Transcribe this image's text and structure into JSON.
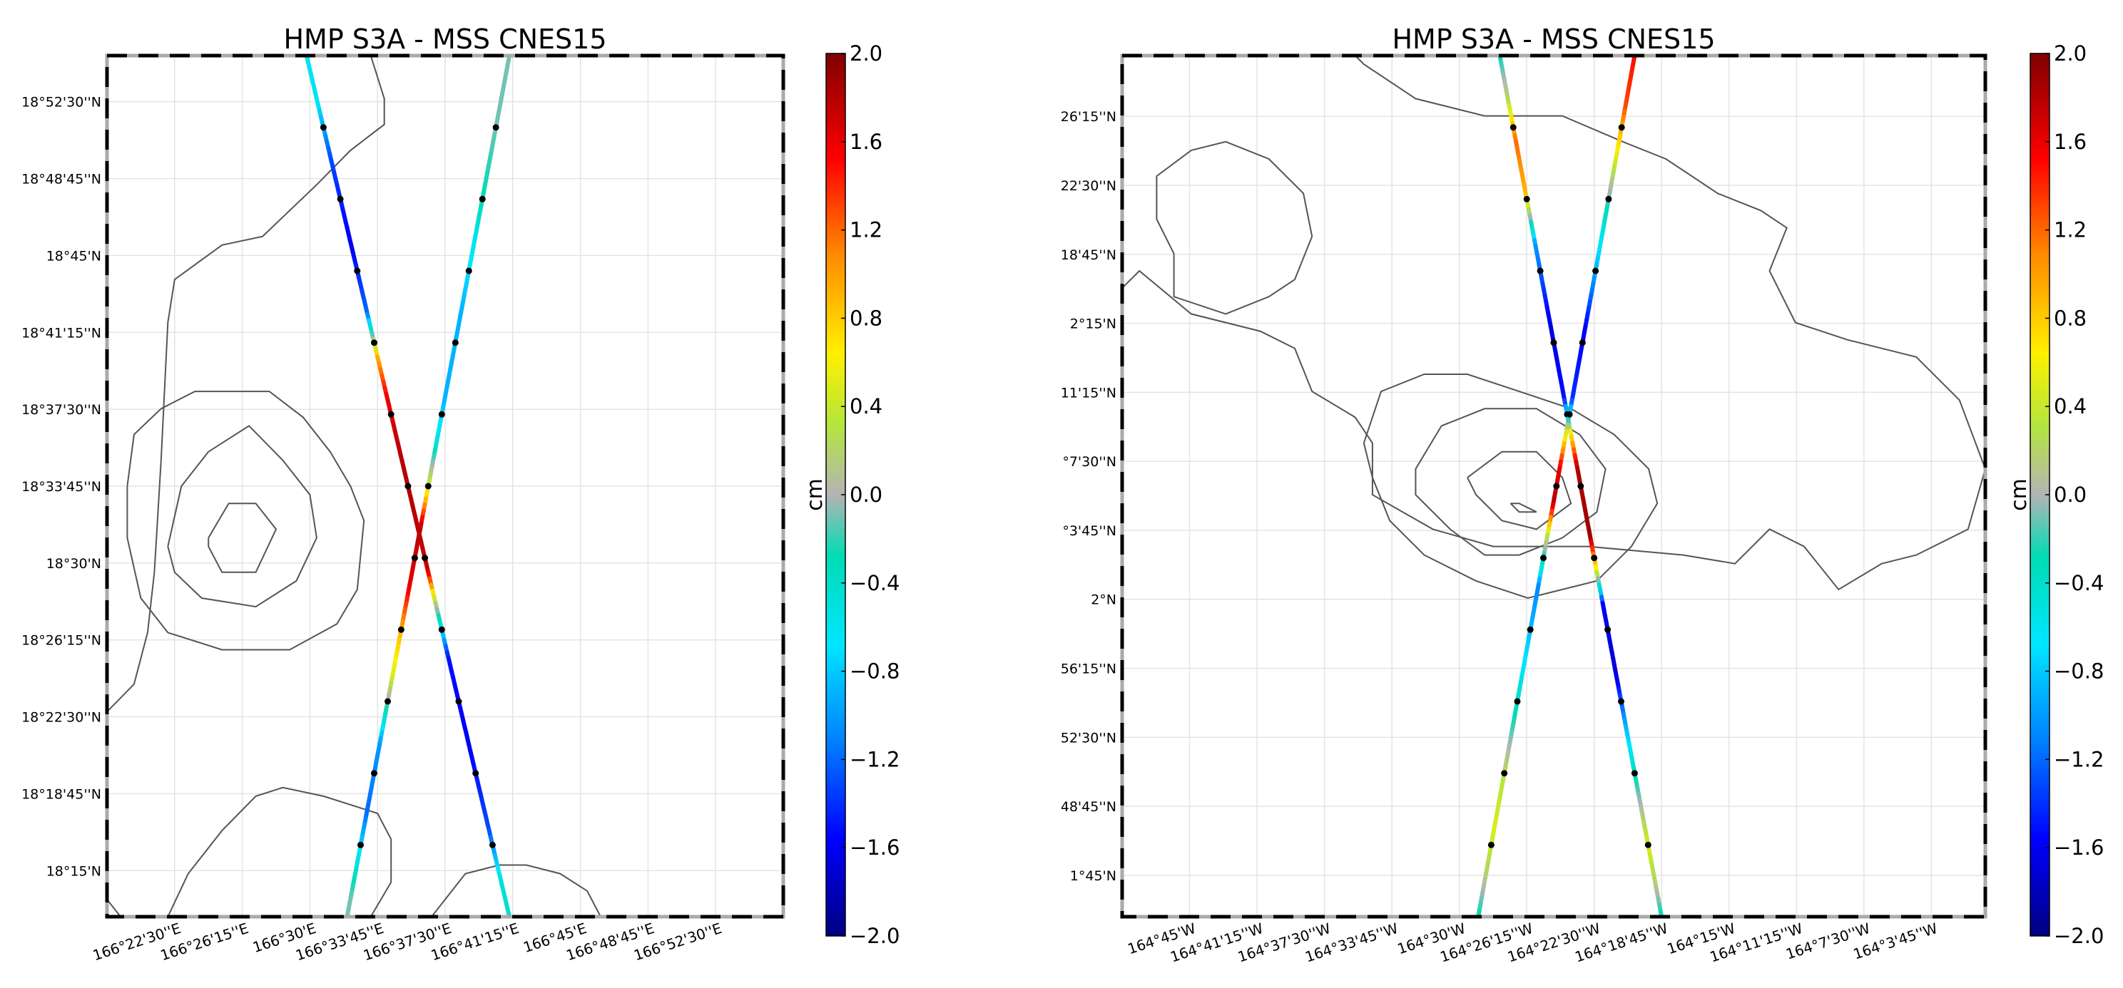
{
  "chart_data": [
    {
      "type": "map-track",
      "title": "HMP S3A - MSS CNES15",
      "projection": "lat-lon",
      "x_axis": {
        "range_deg": [
          166.3125,
          166.9375
        ],
        "ticks_deg": [
          166.375,
          166.4375,
          166.5,
          166.5625,
          166.625,
          166.6875,
          166.75,
          166.8125,
          166.875
        ],
        "tick_labels": [
          "166°22'30''E",
          "166°26'15''E",
          "166°30'E",
          "166°33'45''E",
          "166°37'30''E",
          "166°41'15''E",
          "166°45'E",
          "166°48'45''E",
          "166°52'30''E"
        ]
      },
      "y_axis": {
        "range_deg": [
          18.2125,
          18.9125
        ],
        "ticks_deg": [
          18.25,
          18.3125,
          18.375,
          18.4375,
          18.5,
          18.5625,
          18.625,
          18.6875,
          18.75,
          18.8125,
          18.875
        ],
        "tick_labels": [
          "18°15'N",
          "18°18'45''N",
          "18°22'30''N",
          "18°26'15''N",
          "18°30'N",
          "18°33'45''N",
          "18°37'30''N",
          "18°41'15''N",
          "18°45'N",
          "18°48'45''N",
          "18°52'30''N"
        ]
      },
      "grid": true,
      "tracks": [
        {
          "start": [
            166.4969,
            18.9125
          ],
          "end": [
            166.6844,
            18.2125
          ],
          "profile": [
            [
              0,
              -0.6
            ],
            [
              0.05,
              -0.6
            ],
            [
              0.12,
              -1.3
            ],
            [
              0.22,
              -1.6
            ],
            [
              0.3,
              -1.2
            ],
            [
              0.35,
              0.9
            ],
            [
              0.4,
              1.6
            ],
            [
              0.47,
              1.8
            ],
            [
              0.53,
              1.8
            ],
            [
              0.6,
              1.7
            ],
            [
              0.64,
              0.1
            ],
            [
              0.7,
              -1.5
            ],
            [
              0.8,
              -1.6
            ],
            [
              0.9,
              -1.3
            ],
            [
              0.96,
              -0.5
            ],
            [
              1,
              -0.4
            ]
          ]
        },
        {
          "start": [
            166.6844,
            18.9125
          ],
          "end": [
            166.5344,
            18.2125
          ],
          "profile": [
            [
              0,
              -0.1
            ],
            [
              0.08,
              -0.1
            ],
            [
              0.17,
              -0.3
            ],
            [
              0.22,
              -0.6
            ],
            [
              0.3,
              -0.9
            ],
            [
              0.4,
              -0.9
            ],
            [
              0.45,
              -0.5
            ],
            [
              0.5,
              0.4
            ],
            [
              0.55,
              1.8
            ],
            [
              0.62,
              1.6
            ],
            [
              0.67,
              0.9
            ],
            [
              0.72,
              0.5
            ],
            [
              0.8,
              -1.0
            ],
            [
              0.88,
              -1.2
            ],
            [
              0.94,
              -0.5
            ],
            [
              0.98,
              -0.1
            ],
            [
              1,
              -0.1
            ]
          ]
        }
      ],
      "colorbar": {
        "label": "cm",
        "vmin": -2.0,
        "vmax": 2.0,
        "tick_values": [
          2.0,
          1.6,
          1.2,
          0.8,
          0.4,
          0.0,
          -0.4,
          -0.8,
          -1.2,
          -1.6,
          -2.0
        ],
        "tick_labels": [
          "2.0",
          "1.6",
          "1.2",
          "0.8",
          "0.4",
          "0.0",
          "−0.4",
          "−0.8",
          "−1.2",
          "−1.6",
          "−2.0"
        ]
      }
    },
    {
      "type": "map-track",
      "title": "HMP S3A - MSS CNES15",
      "projection": "lat-lon",
      "x_axis": {
        "range_deg": [
          -164.8125,
          -164.0125
        ],
        "ticks_deg": [
          -164.75,
          -164.6875,
          -164.625,
          -164.5625,
          -164.5,
          -164.4375,
          -164.375,
          -164.3125,
          -164.25,
          -164.1875,
          -164.125,
          -164.0625
        ],
        "tick_labels": [
          "164°45'W",
          "164°41'15''W",
          "164°37'30''W",
          "164°33'45''W",
          "164°30'W",
          "164°26'15''W",
          "164°22'30''W",
          "164°18'45''W",
          "164°15'W",
          "164°11'15''W",
          "164°7'30''W",
          "164°3'45''W"
        ]
      },
      "y_axis": {
        "range_deg": [
          1.7125,
          2.4925
        ],
        "ticks_deg": [
          1.75,
          1.8125,
          1.875,
          1.9375,
          2.0,
          2.0625,
          2.125,
          2.1875,
          2.25,
          2.3125,
          2.375,
          2.4375
        ],
        "tick_labels": [
          "1°45'N",
          "1°48'45''N",
          "1°52'30''N",
          "1°56'15''N",
          "2°N",
          "2°3'45''N",
          "2°7'30''N",
          "2°11'15''N",
          "2°15'N",
          "2°18'45''N",
          "2°22'30''N",
          "2°26'15''N"
        ]
      },
      "grid": true,
      "tracks": [
        {
          "start": [
            -164.4625,
            2.4925
          ],
          "end": [
            -164.3125,
            1.7125
          ],
          "profile": [
            [
              0,
              -0.3
            ],
            [
              0.05,
              0.2
            ],
            [
              0.1,
              1.2
            ],
            [
              0.16,
              0.9
            ],
            [
              0.22,
              -1.0
            ],
            [
              0.32,
              -1.7
            ],
            [
              0.4,
              -1.5
            ],
            [
              0.44,
              0.6
            ],
            [
              0.48,
              1.8
            ],
            [
              0.56,
              1.9
            ],
            [
              0.6,
              0.5
            ],
            [
              0.64,
              -1.6
            ],
            [
              0.72,
              -1.7
            ],
            [
              0.78,
              -0.9
            ],
            [
              0.85,
              -0.2
            ],
            [
              0.92,
              0.5
            ],
            [
              0.96,
              0.2
            ],
            [
              1,
              -0.3
            ]
          ]
        },
        {
          "start": [
            -164.3375,
            2.4925
          ],
          "end": [
            -164.4825,
            1.7125
          ],
          "profile": [
            [
              0,
              1.5
            ],
            [
              0.06,
              1.3
            ],
            [
              0.12,
              0.5
            ],
            [
              0.18,
              -0.3
            ],
            [
              0.25,
              -0.9
            ],
            [
              0.32,
              -1.6
            ],
            [
              0.4,
              -1.4
            ],
            [
              0.44,
              0.5
            ],
            [
              0.48,
              1.6
            ],
            [
              0.52,
              1.8
            ],
            [
              0.56,
              0.3
            ],
            [
              0.62,
              -1.1
            ],
            [
              0.7,
              -0.7
            ],
            [
              0.78,
              -0.2
            ],
            [
              0.84,
              0.3
            ],
            [
              0.9,
              0.5
            ],
            [
              0.95,
              0.2
            ],
            [
              1,
              -0.3
            ]
          ]
        }
      ],
      "colorbar": {
        "label": "cm",
        "vmin": -2.0,
        "vmax": 2.0,
        "tick_values": [
          2.0,
          1.6,
          1.2,
          0.8,
          0.4,
          0.0,
          -0.4,
          -0.8,
          -1.2,
          -1.6,
          -2.0
        ],
        "tick_labels": [
          "2.0",
          "1.6",
          "1.2",
          "0.8",
          "0.4",
          "0.0",
          "−0.4",
          "−0.8",
          "−1.2",
          "−1.6",
          "−2.0"
        ]
      }
    }
  ]
}
